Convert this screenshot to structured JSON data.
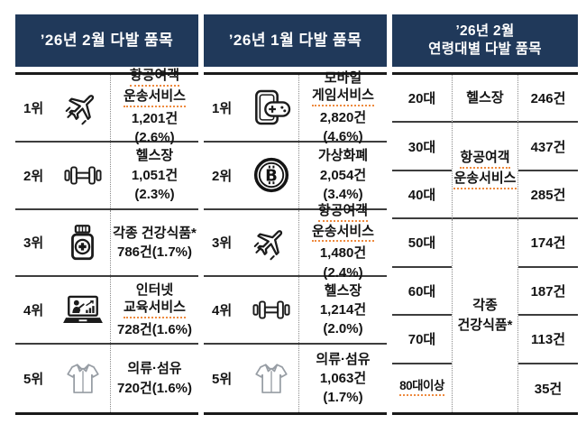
{
  "style_tokens": {
    "header_bg": "#20395a",
    "header_text": "#ffffff",
    "body_text": "#141414",
    "spellcheck_underline": "#ee8a3e"
  },
  "tables": [
    {
      "title": "’26년 2월 다발 품목",
      "title_lines": [
        "’26년 2월 다발 품목"
      ],
      "rows": [
        {
          "rank": "1위",
          "icon": "airplane-icon",
          "lines": [
            "항공여객",
            "운송서비스"
          ],
          "count": "1,201건(2.6%)"
        },
        {
          "rank": "2위",
          "icon": "dumbbell-icon",
          "lines": [
            "헬스장"
          ],
          "count": "1,051건(2.3%)"
        },
        {
          "rank": "3위",
          "icon": "pill-bottle-icon",
          "lines": [
            "각종 건강식품*"
          ],
          "count": "786건(1.7%)"
        },
        {
          "rank": "4위",
          "icon": "online-education-icon",
          "lines": [
            "인터넷",
            "교육서비스"
          ],
          "count": "728건(1.6%)"
        },
        {
          "rank": "5위",
          "icon": "shirt-icon",
          "lines": [
            "의류·섬유"
          ],
          "count": "720건(1.6%)"
        }
      ]
    },
    {
      "title": "’26년 1월 다발 품목",
      "title_lines": [
        "’26년 1월 다발 품목"
      ],
      "rows": [
        {
          "rank": "1위",
          "icon": "mobile-game-icon",
          "lines": [
            "모바일",
            "게임서비스"
          ],
          "count": "2,820건(4.6%)"
        },
        {
          "rank": "2위",
          "icon": "bitcoin-icon",
          "lines": [
            "가상화폐"
          ],
          "count": "2,054건(3.4%)"
        },
        {
          "rank": "3위",
          "icon": "airplane-icon",
          "lines": [
            "항공여객",
            "운송서비스"
          ],
          "count": "1,480건(2.4%)"
        },
        {
          "rank": "4위",
          "icon": "dumbbell-icon",
          "lines": [
            "헬스장"
          ],
          "count": "1,214건(2.0%)"
        },
        {
          "rank": "5위",
          "icon": "shirt-icon",
          "lines": [
            "의류·섬유"
          ],
          "count": "1,063건(1.7%)"
        }
      ]
    },
    {
      "title": "’26년 2월 연령대별 다발 품목",
      "title_lines": [
        "’26년 2월",
        "연령대별 다발 품목"
      ],
      "age_rows": [
        {
          "age": "20대",
          "count": "246건"
        },
        {
          "age": "30대",
          "count": "437건"
        },
        {
          "age": "40대",
          "count": "285건"
        },
        {
          "age": "50대",
          "count": "174건"
        },
        {
          "age": "60대",
          "count": "187건"
        },
        {
          "age": "70대",
          "count": "113건"
        },
        {
          "age": "80대이상",
          "count": "35건"
        }
      ],
      "items": [
        {
          "lines": [
            "헬스장"
          ],
          "age_span": "20대"
        },
        {
          "lines": [
            "항공여객",
            "운송서비스"
          ],
          "age_span": "30대~40대"
        },
        {
          "lines": [
            "각종",
            "건강식품*"
          ],
          "age_span": "50대~80대이상"
        }
      ]
    }
  ]
}
